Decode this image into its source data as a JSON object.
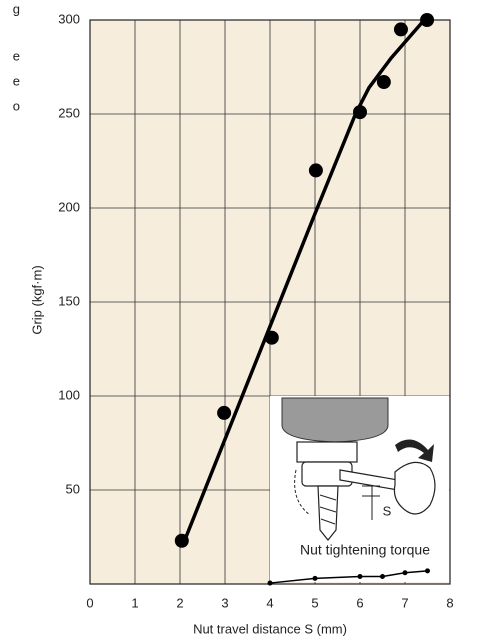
{
  "side_text": [
    "g",
    "e",
    "e",
    "o"
  ],
  "chart_data": {
    "type": "scatter",
    "x_label": "Nut travel distance  S (mm)",
    "y_label": "Grip (kgf·m)",
    "xlim": [
      0,
      8
    ],
    "ylim": [
      0,
      300
    ],
    "xticks": [
      0,
      1,
      2,
      3,
      4,
      5,
      6,
      7,
      8
    ],
    "yticks": [
      50,
      100,
      150,
      200,
      250,
      300
    ],
    "grid": true,
    "background": "#f6eddd",
    "annotations": [
      "S",
      "Nut tightening torque"
    ],
    "series": [
      {
        "style": "markers",
        "color": "#000000",
        "x": [
          2.04,
          2.98,
          4.04,
          5.02,
          6.0,
          6.53,
          6.91,
          7.49
        ],
        "values": [
          23,
          91,
          131,
          220,
          251,
          267,
          295,
          300
        ]
      },
      {
        "style": "line",
        "color": "#000000",
        "x": [
          2.1,
          4.0,
          5.0,
          5.9,
          6.2,
          6.7,
          7.5
        ],
        "values": [
          23,
          137,
          197,
          250,
          264,
          280,
          302
        ]
      },
      {
        "style": "line-markers",
        "color": "#000000",
        "x": [
          4.0,
          5.0,
          6.0,
          6.5,
          7.0,
          7.5
        ],
        "values": [
          0.5,
          3,
          4,
          4,
          6,
          7
        ]
      }
    ]
  }
}
